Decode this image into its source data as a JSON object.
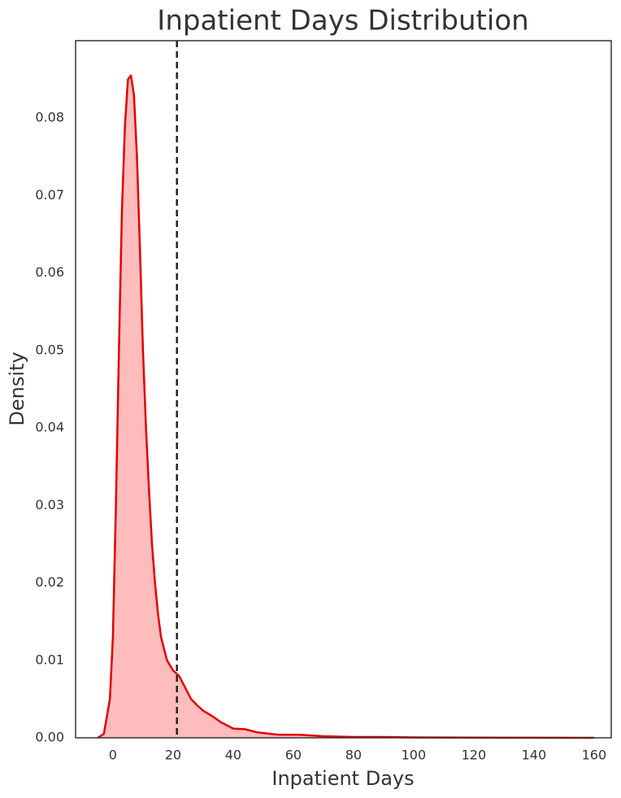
{
  "chart_data": {
    "type": "kde",
    "title": "Inpatient Days Distribution",
    "x_label": "Inpatient Days",
    "y_label": "Density",
    "x": [
      -5,
      -3,
      -1,
      0,
      1,
      2,
      3,
      4,
      5,
      6,
      7,
      8,
      9,
      10,
      11,
      12,
      13,
      14,
      15,
      16,
      18,
      20,
      22,
      24,
      26,
      28,
      30,
      33,
      36,
      40,
      44,
      48,
      55,
      62,
      70,
      80,
      90,
      100,
      120,
      140,
      160
    ],
    "series": [
      {
        "name": "Inpatient Days",
        "color": "#e00000",
        "fill_color": "#ffbcbc",
        "values": [
          0,
          0.0005,
          0.005,
          0.013,
          0.03,
          0.05,
          0.068,
          0.079,
          0.085,
          0.0855,
          0.083,
          0.075,
          0.063,
          0.05,
          0.04,
          0.032,
          0.025,
          0.02,
          0.016,
          0.013,
          0.01,
          0.0087,
          0.008,
          0.0065,
          0.005,
          0.0042,
          0.0035,
          0.0028,
          0.002,
          0.0012,
          0.0011,
          0.0007,
          0.0004,
          0.0004,
          0.0002,
          0.0001,
          0.0001,
          5e-05,
          2e-05,
          1e-05,
          0
        ]
      }
    ],
    "reference_line": {
      "x": 21.3,
      "color": "#222222",
      "style": "dashed"
    },
    "xlim": [
      -12.4,
      165.7
    ],
    "xticks": [
      0,
      20,
      40,
      60,
      80,
      100,
      120,
      140,
      160
    ],
    "ylim": [
      0,
      0.09
    ],
    "yticks": [
      {
        "value": 0,
        "label": "0.00"
      },
      0.01,
      0.02,
      0.03,
      0.04,
      0.05,
      0.06,
      0.07,
      0.08
    ],
    "grid": false
  }
}
